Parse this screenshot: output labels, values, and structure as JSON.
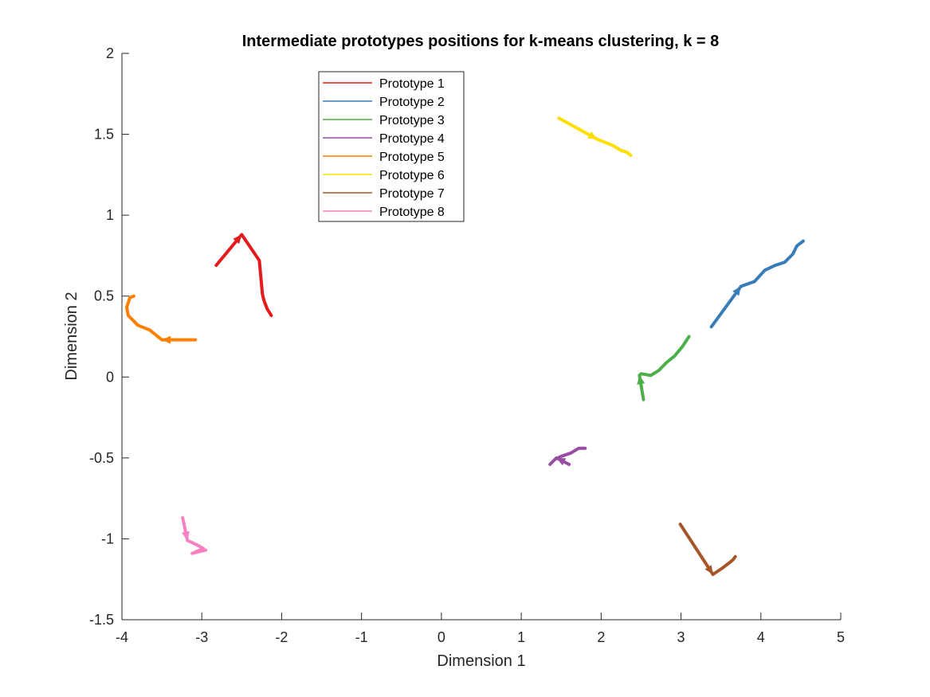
{
  "chart_data": {
    "type": "line",
    "title": "Intermediate prototypes positions for k-means clustering, k = 8",
    "xlabel": "Dimension 1",
    "ylabel": "Dimension 2",
    "xlim": [
      -4,
      5
    ],
    "ylim": [
      -1.5,
      2
    ],
    "xticks": [
      "-4",
      "-3",
      "-2",
      "-1",
      "0",
      "1",
      "2",
      "3",
      "4",
      "5"
    ],
    "yticks": [
      "-1.5",
      "-1",
      "-0.5",
      "0",
      "0.5",
      "1",
      "1.5",
      "2"
    ],
    "grid": false,
    "legend_position": "top-left (inside axes)",
    "series": [
      {
        "name": "Prototype 1",
        "color": "#e41a1c",
        "x": [
          -2.82,
          -2.5,
          -2.28,
          -2.25,
          -2.24,
          -2.22,
          -2.18,
          -2.13
        ],
        "y": [
          0.69,
          0.88,
          0.72,
          0.56,
          0.51,
          0.47,
          0.42,
          0.38
        ]
      },
      {
        "name": "Prototype 2",
        "color": "#377eb8",
        "x": [
          3.38,
          3.75,
          3.92,
          4.05,
          4.18,
          4.3,
          4.4,
          4.45,
          4.53
        ],
        "y": [
          0.31,
          0.56,
          0.59,
          0.66,
          0.69,
          0.71,
          0.76,
          0.81,
          0.84
        ]
      },
      {
        "name": "Prototype 3",
        "color": "#4daf4a",
        "x": [
          2.53,
          2.48,
          2.5,
          2.62,
          2.72,
          2.82,
          2.92,
          3.02,
          3.1
        ],
        "y": [
          -0.14,
          0.01,
          0.02,
          0.01,
          0.04,
          0.09,
          0.13,
          0.19,
          0.25
        ]
      },
      {
        "name": "Prototype 4",
        "color": "#984ea3",
        "x": [
          1.6,
          1.44,
          1.36,
          1.42,
          1.5,
          1.62,
          1.72,
          1.8
        ],
        "y": [
          -0.54,
          -0.5,
          -0.54,
          -0.51,
          -0.49,
          -0.47,
          -0.44,
          -0.44
        ]
      },
      {
        "name": "Prototype 5",
        "color": "#ff7f00",
        "x": [
          -3.08,
          -3.5,
          -3.65,
          -3.8,
          -3.92,
          -3.94,
          -3.9,
          -3.85
        ],
        "y": [
          0.23,
          0.23,
          0.29,
          0.32,
          0.38,
          0.43,
          0.49,
          0.5
        ]
      },
      {
        "name": "Prototype 6",
        "color": "#ffdf00",
        "x": [
          1.47,
          1.95,
          2.15,
          2.25,
          2.32,
          2.37
        ],
        "y": [
          1.6,
          1.47,
          1.43,
          1.4,
          1.39,
          1.37
        ]
      },
      {
        "name": "Prototype 7",
        "color": "#a65628",
        "x": [
          2.99,
          3.4,
          3.52,
          3.6,
          3.65,
          3.68
        ],
        "y": [
          -0.91,
          -1.22,
          -1.18,
          -1.15,
          -1.13,
          -1.11
        ]
      },
      {
        "name": "Prototype 8",
        "color": "#f781bf",
        "x": [
          -3.24,
          -3.18,
          -3.05,
          -2.98,
          -3.12,
          -2.95
        ],
        "y": [
          -0.87,
          -1.01,
          -1.04,
          -1.06,
          -1.09,
          -1.07
        ]
      }
    ]
  }
}
